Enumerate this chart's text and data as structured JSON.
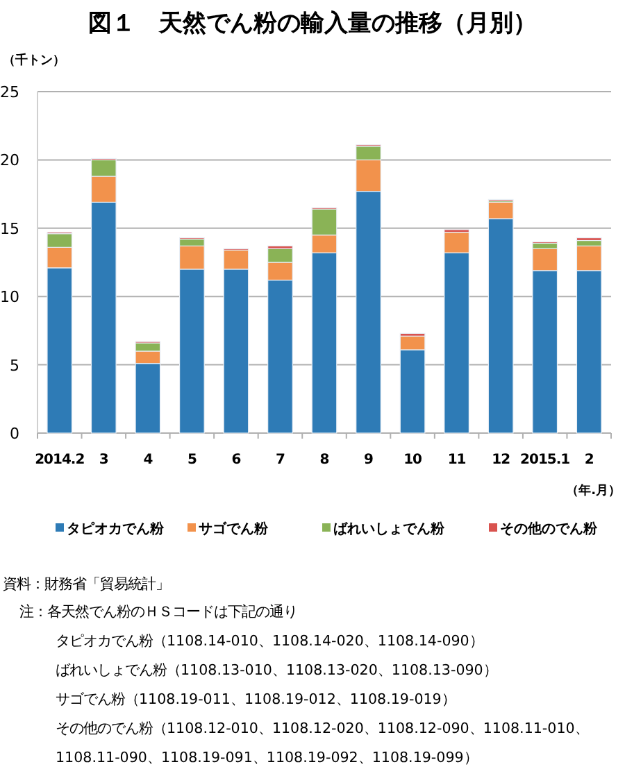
{
  "chart_data": {
    "type": "bar",
    "stacked": true,
    "title": "図１　天然でん粉の輸入量の推移（月別）",
    "ylabel": "（千トン）",
    "xlabel": "（年.月）",
    "categories": [
      "2014.2",
      "3",
      "4",
      "5",
      "6",
      "7",
      "8",
      "9",
      "10",
      "11",
      "12",
      "2015.1",
      "2"
    ],
    "series": [
      {
        "name": "タピオカでん粉",
        "color": "#2e7bb6",
        "values": [
          12.1,
          16.9,
          5.1,
          12.0,
          12.0,
          11.2,
          13.2,
          17.7,
          6.1,
          13.2,
          15.7,
          11.9,
          11.9
        ]
      },
      {
        "name": "サゴでん粉",
        "color": "#f2924c",
        "values": [
          1.5,
          1.9,
          0.9,
          1.7,
          1.4,
          1.3,
          1.3,
          2.3,
          1.0,
          1.5,
          1.2,
          1.6,
          1.8
        ]
      },
      {
        "name": "ばれいしょでん粉",
        "color": "#8ab356",
        "values": [
          1.0,
          1.2,
          0.6,
          0.5,
          0,
          1.0,
          1.9,
          1.0,
          0,
          0,
          0.1,
          0.4,
          0.4
        ]
      },
      {
        "name": "その他のでん粉",
        "color": "#d9534f",
        "values": [
          0.1,
          0.1,
          0.1,
          0.1,
          0.1,
          0.2,
          0.1,
          0.1,
          0.2,
          0.2,
          0.1,
          0.1,
          0.2
        ]
      }
    ],
    "ylim": [
      0,
      25
    ],
    "yticks": [
      0,
      5,
      10,
      15,
      20,
      25
    ],
    "grid": "y",
    "legend": "bottom",
    "annotations": [
      "資料：財務省「貿易統計」",
      "注：各天然でん粉のＨＳコードは下記の通り",
      "タピオカでん粉（1108.14-010、1108.14-020、1108.14-090）",
      "ばれいしょでん粉（1108.13-010、1108.13-020、1108.13-090）",
      "サゴでん粉（1108.19-011、1108.19-012、1108.19-019）",
      "その他のでん粉（1108.12-010、1108.12-020、1108.12-090、1108.11-010、",
      "1108.11-090、1108.19-091、1108.19-092、1108.19-099）"
    ]
  }
}
